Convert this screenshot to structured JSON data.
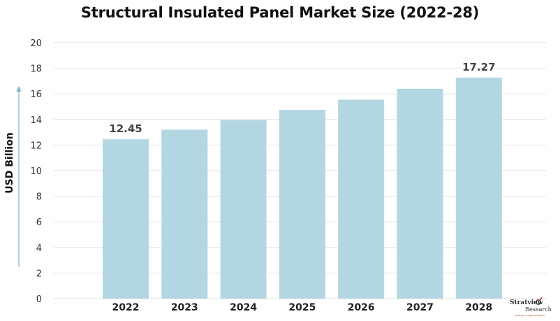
{
  "chart_data": {
    "type": "bar",
    "title": "Structural Insulated Panel Market Size (2022-28)",
    "xlabel": "",
    "ylabel": "USD Billion",
    "categories": [
      "2022",
      "2023",
      "2024",
      "2025",
      "2026",
      "2027",
      "2028"
    ],
    "values": [
      12.45,
      13.2,
      13.95,
      14.75,
      15.55,
      16.4,
      17.27
    ],
    "data_labels": [
      "12.45",
      "",
      "",
      "",
      "",
      "",
      "17.27"
    ],
    "ylim": [
      0,
      20
    ],
    "yticks": [
      0,
      2,
      4,
      6,
      8,
      10,
      12,
      14,
      16,
      18,
      20
    ],
    "grid": true,
    "bar_color": "#b3d6e3",
    "gridline_color": "#e2e2e2",
    "axis_arrow_color": "#7fb3cc"
  },
  "branding": {
    "logo_name": "Stratview",
    "logo_sub": "Research",
    "logo_tagline": "Strategic Insights Simplified",
    "logo_icon": "stratview-logo-icon"
  }
}
